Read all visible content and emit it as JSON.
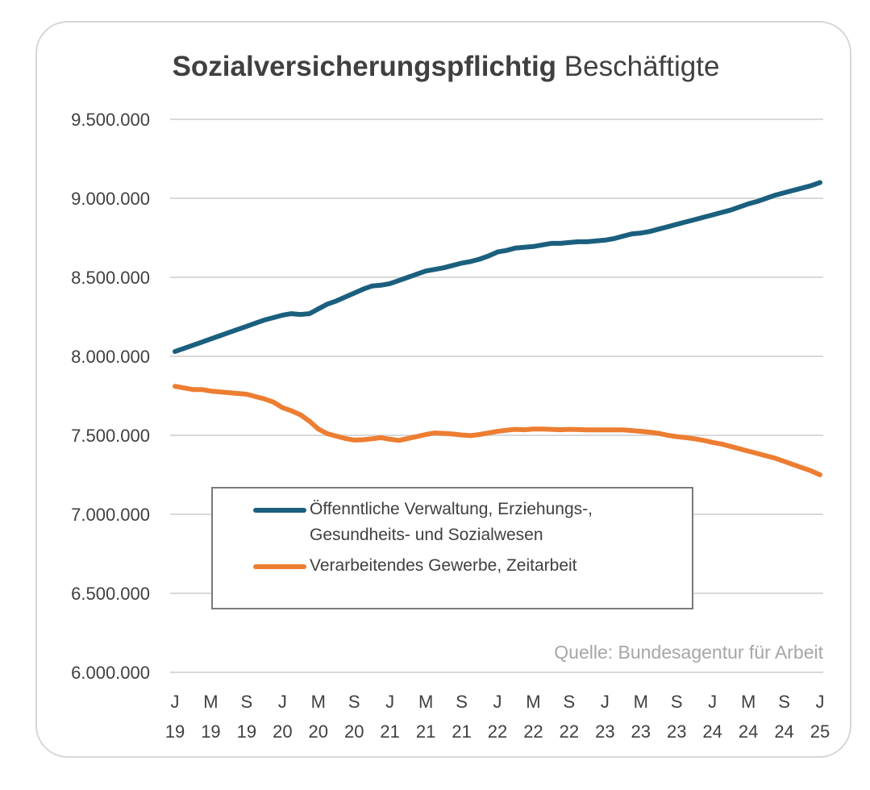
{
  "chart_data": {
    "type": "line",
    "title": {
      "bold": "Sozialversicherungspflichtig",
      "regular": "Beschäftigte"
    },
    "ylim": [
      6000000,
      9500000
    ],
    "yticks": [
      "9.500.000",
      "9.000.000",
      "8.500.000",
      "8.000.000",
      "7.500.000",
      "7.000.000",
      "6.500.000",
      "6.000.000"
    ],
    "ytick_values": [
      9500000,
      9000000,
      8500000,
      8000000,
      7500000,
      7000000,
      6500000,
      6000000
    ],
    "x_start": "2019-01",
    "x_end": "2025-01",
    "xticks": [
      {
        "month": "J",
        "year": "19"
      },
      {
        "month": "M",
        "year": "19"
      },
      {
        "month": "S",
        "year": "19"
      },
      {
        "month": "J",
        "year": "20"
      },
      {
        "month": "M",
        "year": "20"
      },
      {
        "month": "S",
        "year": "20"
      },
      {
        "month": "J",
        "year": "21"
      },
      {
        "month": "M",
        "year": "21"
      },
      {
        "month": "S",
        "year": "21"
      },
      {
        "month": "J",
        "year": "22"
      },
      {
        "month": "M",
        "year": "22"
      },
      {
        "month": "S",
        "year": "22"
      },
      {
        "month": "J",
        "year": "23"
      },
      {
        "month": "M",
        "year": "23"
      },
      {
        "month": "S",
        "year": "23"
      },
      {
        "month": "J",
        "year": "24"
      },
      {
        "month": "M",
        "year": "24"
      },
      {
        "month": "S",
        "year": "24"
      },
      {
        "month": "J",
        "year": "25"
      }
    ],
    "grid": true,
    "legend_position": "bottom-center",
    "source": "Quelle:  Bundesagentur für Arbeit",
    "series": [
      {
        "name": "Öffenntliche Verwaltung, Erziehungs-, Gesundheits- und Sozialwesen",
        "legend_lines": [
          "Öffenntliche Verwaltung, Erziehungs-,",
          "Gesundheits- und Sozialwesen"
        ],
        "color": "#1b5f7e",
        "x": [
          "2019-01",
          "2019-02",
          "2019-03",
          "2019-04",
          "2019-05",
          "2019-06",
          "2019-07",
          "2019-08",
          "2019-09",
          "2019-10",
          "2019-11",
          "2019-12",
          "2020-01",
          "2020-02",
          "2020-03",
          "2020-04",
          "2020-05",
          "2020-06",
          "2020-07",
          "2020-08",
          "2020-09",
          "2020-10",
          "2020-11",
          "2020-12",
          "2021-01",
          "2021-02",
          "2021-03",
          "2021-04",
          "2021-05",
          "2021-06",
          "2021-07",
          "2021-08",
          "2021-09",
          "2021-10",
          "2021-11",
          "2021-12",
          "2022-01",
          "2022-02",
          "2022-03",
          "2022-04",
          "2022-05",
          "2022-06",
          "2022-07",
          "2022-08",
          "2022-09",
          "2022-10",
          "2022-11",
          "2022-12",
          "2023-01",
          "2023-02",
          "2023-03",
          "2023-04",
          "2023-05",
          "2023-06",
          "2023-07",
          "2023-08",
          "2023-09",
          "2023-10",
          "2023-11",
          "2023-12",
          "2024-01",
          "2024-02",
          "2024-03",
          "2024-04",
          "2024-05",
          "2024-06",
          "2024-07",
          "2024-08",
          "2024-09",
          "2024-10",
          "2024-11",
          "2024-12",
          "2025-01"
        ],
        "values": [
          8030000,
          8050000,
          8070000,
          8090000,
          8110000,
          8130000,
          8150000,
          8170000,
          8190000,
          8210000,
          8230000,
          8245000,
          8260000,
          8270000,
          8265000,
          8270000,
          8300000,
          8330000,
          8350000,
          8375000,
          8400000,
          8425000,
          8445000,
          8450000,
          8460000,
          8480000,
          8500000,
          8520000,
          8540000,
          8550000,
          8560000,
          8575000,
          8590000,
          8600000,
          8615000,
          8635000,
          8660000,
          8670000,
          8685000,
          8690000,
          8695000,
          8705000,
          8715000,
          8715000,
          8720000,
          8725000,
          8725000,
          8730000,
          8735000,
          8745000,
          8760000,
          8775000,
          8780000,
          8790000,
          8805000,
          8820000,
          8835000,
          8850000,
          8865000,
          8880000,
          8895000,
          8910000,
          8925000,
          8945000,
          8965000,
          8980000,
          9000000,
          9020000,
          9035000,
          9050000,
          9065000,
          9080000,
          9100000
        ]
      },
      {
        "name": "Verarbeitendes Gewerbe, Zeitarbeit",
        "legend_lines": [
          "Verarbeitendes Gewerbe, Zeitarbeit"
        ],
        "color": "#ed7d31",
        "x": [
          "2019-01",
          "2019-02",
          "2019-03",
          "2019-04",
          "2019-05",
          "2019-06",
          "2019-07",
          "2019-08",
          "2019-09",
          "2019-10",
          "2019-11",
          "2019-12",
          "2020-01",
          "2020-02",
          "2020-03",
          "2020-04",
          "2020-05",
          "2020-06",
          "2020-07",
          "2020-08",
          "2020-09",
          "2020-10",
          "2020-11",
          "2020-12",
          "2021-01",
          "2021-02",
          "2021-03",
          "2021-04",
          "2021-05",
          "2021-06",
          "2021-07",
          "2021-08",
          "2021-09",
          "2021-10",
          "2021-11",
          "2021-12",
          "2022-01",
          "2022-02",
          "2022-03",
          "2022-04",
          "2022-05",
          "2022-06",
          "2022-07",
          "2022-08",
          "2022-09",
          "2022-10",
          "2022-11",
          "2022-12",
          "2023-01",
          "2023-02",
          "2023-03",
          "2023-04",
          "2023-05",
          "2023-06",
          "2023-07",
          "2023-08",
          "2023-09",
          "2023-10",
          "2023-11",
          "2023-12",
          "2024-01",
          "2024-02",
          "2024-03",
          "2024-04",
          "2024-05",
          "2024-06",
          "2024-07",
          "2024-08",
          "2024-09",
          "2024-10",
          "2024-11",
          "2024-12",
          "2025-01"
        ],
        "values": [
          7810000,
          7800000,
          7790000,
          7790000,
          7780000,
          7775000,
          7770000,
          7765000,
          7760000,
          7745000,
          7730000,
          7710000,
          7675000,
          7655000,
          7630000,
          7590000,
          7540000,
          7510000,
          7495000,
          7480000,
          7470000,
          7472000,
          7478000,
          7485000,
          7475000,
          7468000,
          7480000,
          7492000,
          7505000,
          7515000,
          7512000,
          7508000,
          7502000,
          7498000,
          7505000,
          7515000,
          7525000,
          7532000,
          7538000,
          7535000,
          7540000,
          7540000,
          7538000,
          7535000,
          7538000,
          7536000,
          7534000,
          7534000,
          7534000,
          7534000,
          7534000,
          7530000,
          7525000,
          7520000,
          7512000,
          7500000,
          7492000,
          7485000,
          7478000,
          7468000,
          7455000,
          7445000,
          7430000,
          7415000,
          7400000,
          7385000,
          7370000,
          7355000,
          7335000,
          7315000,
          7295000,
          7275000,
          7250000
        ]
      }
    ]
  }
}
